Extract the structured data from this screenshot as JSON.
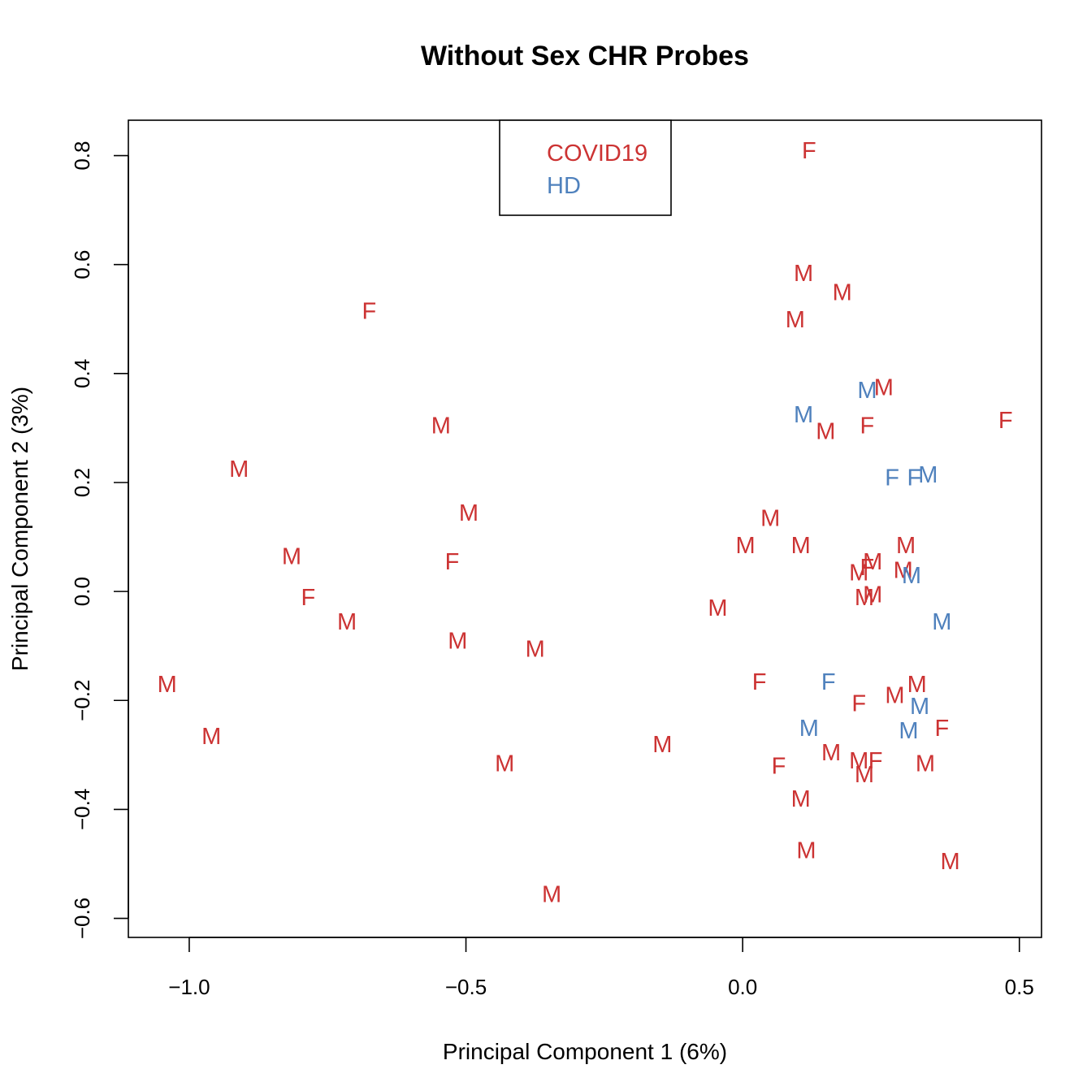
{
  "chart_data": {
    "type": "scatter",
    "title": "Without Sex CHR Probes",
    "xlabel": "Principal Component 1 (6%)",
    "ylabel": "Principal Component 2 (3%)",
    "xlim": [
      -1.11,
      0.54
    ],
    "ylim": [
      -0.635,
      0.865
    ],
    "xticks": [
      -1.0,
      -0.5,
      0.0,
      0.5
    ],
    "xtick_labels": [
      "−1.0",
      "−0.5",
      "0.0",
      "0.5"
    ],
    "yticks": [
      -0.6,
      -0.4,
      -0.2,
      0.0,
      0.2,
      0.4,
      0.6,
      0.8
    ],
    "ytick_labels": [
      "−0.6",
      "−0.4",
      "−0.2",
      "0.0",
      "0.2",
      "0.4",
      "0.6",
      "0.8"
    ],
    "grid": false,
    "legend_position": "top-center",
    "series": [
      {
        "name": "COVID19",
        "color": "#cc3333",
        "points": [
          {
            "x": 0.12,
            "y": 0.81,
            "label": "F"
          },
          {
            "x": 0.11,
            "y": 0.585,
            "label": "M"
          },
          {
            "x": 0.18,
            "y": 0.55,
            "label": "M"
          },
          {
            "x": 0.095,
            "y": 0.5,
            "label": "M"
          },
          {
            "x": -0.675,
            "y": 0.515,
            "label": "F"
          },
          {
            "x": 0.255,
            "y": 0.375,
            "label": "M"
          },
          {
            "x": 0.15,
            "y": 0.295,
            "label": "M"
          },
          {
            "x": 0.225,
            "y": 0.305,
            "label": "F"
          },
          {
            "x": 0.475,
            "y": 0.315,
            "label": "F"
          },
          {
            "x": -0.545,
            "y": 0.305,
            "label": "M"
          },
          {
            "x": -0.91,
            "y": 0.225,
            "label": "M"
          },
          {
            "x": -0.495,
            "y": 0.145,
            "label": "M"
          },
          {
            "x": 0.05,
            "y": 0.135,
            "label": "M"
          },
          {
            "x": 0.005,
            "y": 0.085,
            "label": "M"
          },
          {
            "x": 0.105,
            "y": 0.085,
            "label": "M"
          },
          {
            "x": 0.295,
            "y": 0.085,
            "label": "M"
          },
          {
            "x": -0.815,
            "y": 0.065,
            "label": "M"
          },
          {
            "x": -0.525,
            "y": 0.055,
            "label": "F"
          },
          {
            "x": 0.235,
            "y": 0.055,
            "label": "M"
          },
          {
            "x": 0.225,
            "y": 0.045,
            "label": "F"
          },
          {
            "x": 0.21,
            "y": 0.035,
            "label": "M"
          },
          {
            "x": 0.29,
            "y": 0.04,
            "label": "M"
          },
          {
            "x": -0.785,
            "y": -0.01,
            "label": "F"
          },
          {
            "x": 0.22,
            "y": -0.01,
            "label": "M"
          },
          {
            "x": 0.235,
            "y": -0.005,
            "label": "M"
          },
          {
            "x": -0.715,
            "y": -0.055,
            "label": "M"
          },
          {
            "x": -0.045,
            "y": -0.03,
            "label": "M"
          },
          {
            "x": -0.515,
            "y": -0.09,
            "label": "M"
          },
          {
            "x": -0.375,
            "y": -0.105,
            "label": "M"
          },
          {
            "x": -1.04,
            "y": -0.17,
            "label": "M"
          },
          {
            "x": 0.03,
            "y": -0.165,
            "label": "F"
          },
          {
            "x": 0.315,
            "y": -0.17,
            "label": "M"
          },
          {
            "x": 0.275,
            "y": -0.19,
            "label": "M"
          },
          {
            "x": 0.21,
            "y": -0.205,
            "label": "F"
          },
          {
            "x": 0.36,
            "y": -0.25,
            "label": "F"
          },
          {
            "x": -0.96,
            "y": -0.265,
            "label": "M"
          },
          {
            "x": -0.145,
            "y": -0.28,
            "label": "M"
          },
          {
            "x": 0.16,
            "y": -0.295,
            "label": "M"
          },
          {
            "x": -0.43,
            "y": -0.315,
            "label": "M"
          },
          {
            "x": 0.21,
            "y": -0.31,
            "label": "M"
          },
          {
            "x": 0.24,
            "y": -0.31,
            "label": "F"
          },
          {
            "x": 0.33,
            "y": -0.315,
            "label": "M"
          },
          {
            "x": 0.065,
            "y": -0.32,
            "label": "F"
          },
          {
            "x": 0.22,
            "y": -0.335,
            "label": "M"
          },
          {
            "x": 0.105,
            "y": -0.38,
            "label": "M"
          },
          {
            "x": 0.115,
            "y": -0.475,
            "label": "M"
          },
          {
            "x": 0.375,
            "y": -0.495,
            "label": "M"
          },
          {
            "x": -0.345,
            "y": -0.555,
            "label": "M"
          }
        ]
      },
      {
        "name": "HD",
        "color": "#4f81bd",
        "points": [
          {
            "x": 0.225,
            "y": 0.37,
            "label": "M"
          },
          {
            "x": 0.11,
            "y": 0.325,
            "label": "M"
          },
          {
            "x": 0.27,
            "y": 0.21,
            "label": "F"
          },
          {
            "x": 0.31,
            "y": 0.21,
            "label": "F"
          },
          {
            "x": 0.335,
            "y": 0.215,
            "label": "M"
          },
          {
            "x": 0.305,
            "y": 0.03,
            "label": "M"
          },
          {
            "x": 0.36,
            "y": -0.055,
            "label": "M"
          },
          {
            "x": 0.155,
            "y": -0.165,
            "label": "F"
          },
          {
            "x": 0.32,
            "y": -0.21,
            "label": "M"
          },
          {
            "x": 0.12,
            "y": -0.25,
            "label": "M"
          },
          {
            "x": 0.3,
            "y": -0.255,
            "label": "M"
          }
        ]
      }
    ]
  }
}
